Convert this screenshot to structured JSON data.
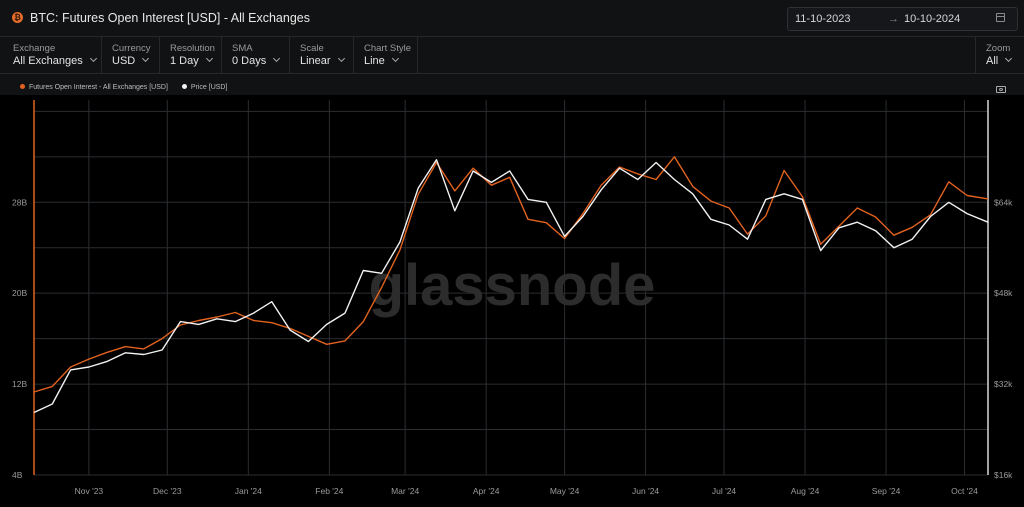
{
  "header": {
    "title": "BTC: Futures Open Interest [USD] - All Exchanges",
    "asset_icon": "bitcoin-icon",
    "date_from": "11-10-2023",
    "date_arrow": "→",
    "date_to": "10-10-2024"
  },
  "controls": [
    {
      "label": "Exchange",
      "value": "All Exchanges"
    },
    {
      "label": "Currency",
      "value": "USD"
    },
    {
      "label": "Resolution",
      "value": "1 Day"
    },
    {
      "label": "SMA",
      "value": "0 Days"
    },
    {
      "label": "Scale",
      "value": "Linear"
    },
    {
      "label": "Chart Style",
      "value": "Line"
    }
  ],
  "zoom": {
    "label": "Zoom",
    "value": "All"
  },
  "colors": {
    "oi": "#e2621f",
    "price": "#f2f2f2",
    "grid": "#2b2d30",
    "background": "#000000"
  },
  "watermark": "glassnode",
  "chart_data": {
    "type": "line",
    "title": "BTC: Futures Open Interest [USD] - All Exchanges",
    "x_range": [
      "2023-10-11",
      "2024-10-10"
    ],
    "x_ticks": [
      "Nov '23",
      "Dec '23",
      "Jan '24",
      "Feb '24",
      "Mar '24",
      "Apr '24",
      "May '24",
      "Jun '24",
      "Jul '24",
      "Aug '24",
      "Sep '24",
      "Oct '24"
    ],
    "y_left": {
      "ticks": [
        "4B",
        "12B",
        "20B",
        "28B"
      ],
      "range": [
        4,
        37
      ]
    },
    "y_right": {
      "ticks": [
        "$16k",
        "$32k",
        "$48k",
        "$64k"
      ],
      "range": [
        16000,
        82000
      ]
    },
    "grid": true,
    "legend_position": "top-left",
    "series": [
      {
        "name": "Futures Open Interest - All Exchanges [USD]",
        "axis": "left",
        "unit": "B USD",
        "x": [
          "2023-10-11",
          "2023-10-18",
          "2023-10-25",
          "2023-11-01",
          "2023-11-08",
          "2023-11-15",
          "2023-11-22",
          "2023-11-29",
          "2023-12-06",
          "2023-12-13",
          "2023-12-20",
          "2023-12-27",
          "2024-01-03",
          "2024-01-10",
          "2024-01-17",
          "2024-01-24",
          "2024-01-31",
          "2024-02-07",
          "2024-02-14",
          "2024-02-21",
          "2024-02-28",
          "2024-03-06",
          "2024-03-13",
          "2024-03-20",
          "2024-03-27",
          "2024-04-03",
          "2024-04-10",
          "2024-04-17",
          "2024-04-24",
          "2024-05-01",
          "2024-05-08",
          "2024-05-15",
          "2024-05-22",
          "2024-05-29",
          "2024-06-05",
          "2024-06-12",
          "2024-06-19",
          "2024-06-26",
          "2024-07-03",
          "2024-07-10",
          "2024-07-17",
          "2024-07-24",
          "2024-07-31",
          "2024-08-07",
          "2024-08-14",
          "2024-08-21",
          "2024-08-28",
          "2024-09-04",
          "2024-09-11",
          "2024-09-18",
          "2024-09-25",
          "2024-10-02",
          "2024-10-10"
        ],
        "y": [
          11.3,
          11.8,
          13.5,
          14.2,
          14.8,
          15.3,
          15.1,
          16.0,
          17.2,
          17.6,
          17.9,
          18.3,
          17.6,
          17.4,
          16.9,
          16.2,
          15.5,
          15.8,
          17.5,
          20.5,
          23.8,
          28.7,
          31.5,
          29.0,
          31.0,
          29.5,
          30.2,
          26.5,
          26.2,
          24.8,
          27.0,
          29.5,
          31.1,
          30.5,
          30.0,
          32.0,
          29.4,
          28.1,
          27.5,
          25.2,
          26.8,
          30.8,
          28.5,
          24.3,
          25.9,
          27.5,
          26.7,
          25.1,
          25.8,
          26.9,
          29.8,
          28.6,
          28.3
        ]
      },
      {
        "name": "Price [USD]",
        "axis": "right",
        "unit": "USD",
        "x": [
          "2023-10-11",
          "2023-10-18",
          "2023-10-25",
          "2023-11-01",
          "2023-11-08",
          "2023-11-15",
          "2023-11-22",
          "2023-11-29",
          "2023-12-06",
          "2023-12-13",
          "2023-12-20",
          "2023-12-27",
          "2024-01-03",
          "2024-01-10",
          "2024-01-17",
          "2024-01-24",
          "2024-01-31",
          "2024-02-07",
          "2024-02-14",
          "2024-02-21",
          "2024-02-28",
          "2024-03-06",
          "2024-03-13",
          "2024-03-20",
          "2024-03-27",
          "2024-04-03",
          "2024-04-10",
          "2024-04-17",
          "2024-04-24",
          "2024-05-01",
          "2024-05-08",
          "2024-05-15",
          "2024-05-22",
          "2024-05-29",
          "2024-06-05",
          "2024-06-12",
          "2024-06-19",
          "2024-06-26",
          "2024-07-03",
          "2024-07-10",
          "2024-07-17",
          "2024-07-24",
          "2024-07-31",
          "2024-08-07",
          "2024-08-14",
          "2024-08-21",
          "2024-08-28",
          "2024-09-04",
          "2024-09-11",
          "2024-09-18",
          "2024-09-25",
          "2024-10-02",
          "2024-10-10"
        ],
        "y": [
          27000,
          28500,
          34500,
          35000,
          36000,
          37500,
          37200,
          38000,
          43000,
          42500,
          43500,
          43000,
          44500,
          46500,
          41500,
          39500,
          42500,
          44500,
          52000,
          51500,
          57000,
          66500,
          71500,
          62500,
          69500,
          67500,
          69500,
          64500,
          64000,
          58000,
          61500,
          66200,
          70000,
          68000,
          71000,
          68000,
          65500,
          61000,
          60000,
          57500,
          64500,
          65500,
          64500,
          55500,
          59500,
          60500,
          59000,
          56000,
          57500,
          61500,
          64000,
          62000,
          60500
        ]
      }
    ]
  }
}
